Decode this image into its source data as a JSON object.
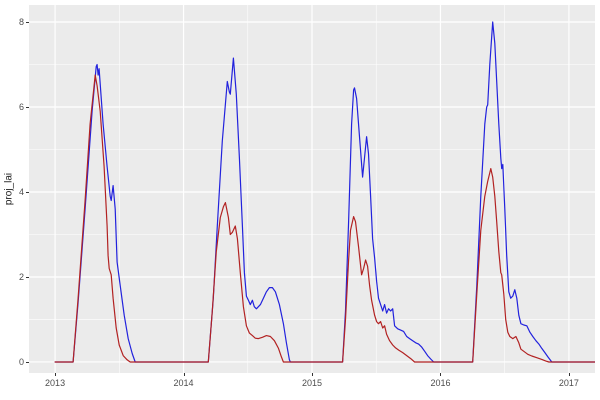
{
  "figure": {
    "background": "#ffffff",
    "panel_background": "#ebebeb",
    "grid_major_color": "#ffffff",
    "grid_minor_color": "#ffffff",
    "tick_mark_color": "#333333",
    "tick_label_color": "#4d4d4d",
    "axis_title_color": "#1a1a1a"
  },
  "chart_data": {
    "type": "line",
    "title": "",
    "xlabel": "",
    "ylabel": "proj_lai",
    "xlim": [
      2012.797,
      2017.203
    ],
    "ylim": [
      -0.26,
      8.4
    ],
    "x_ticks": [
      2013,
      2014,
      2015,
      2016,
      2017
    ],
    "x_tick_labels": [
      "2013",
      "2014",
      "2015",
      "2016",
      "2017"
    ],
    "y_ticks": [
      0,
      2,
      4,
      6,
      8
    ],
    "y_tick_labels": [
      "0",
      "2",
      "4",
      "6",
      "8"
    ],
    "x_minor_ticks": [
      2013.5,
      2014.5,
      2015.5,
      2016.5
    ],
    "y_minor_ticks": [
      1,
      3,
      5,
      7
    ],
    "grid": true,
    "legend": "none",
    "series": [
      {
        "name": "blue-series",
        "color": "#2222dd",
        "points": [
          [
            2013.0,
            0
          ],
          [
            2013.14,
            0
          ],
          [
            2013.179,
            1.4
          ],
          [
            2013.234,
            3.6
          ],
          [
            2013.288,
            5.9
          ],
          [
            2013.32,
            6.95
          ],
          [
            2013.327,
            7.0
          ],
          [
            2013.335,
            6.75
          ],
          [
            2013.343,
            6.9
          ],
          [
            2013.374,
            5.6
          ],
          [
            2013.405,
            4.6
          ],
          [
            2013.429,
            3.9
          ],
          [
            2013.437,
            3.8
          ],
          [
            2013.452,
            4.15
          ],
          [
            2013.468,
            3.6
          ],
          [
            2013.483,
            2.35
          ],
          [
            2013.507,
            1.8
          ],
          [
            2013.538,
            1.1
          ],
          [
            2013.569,
            0.55
          ],
          [
            2013.6,
            0.2
          ],
          [
            2013.624,
            0
          ],
          [
            2014.193,
            0
          ],
          [
            2014.232,
            1.5
          ],
          [
            2014.263,
            3.2
          ],
          [
            2014.302,
            5.2
          ],
          [
            2014.341,
            6.6
          ],
          [
            2014.357,
            6.35
          ],
          [
            2014.364,
            6.3
          ],
          [
            2014.388,
            7.15
          ],
          [
            2014.411,
            6.3
          ],
          [
            2014.435,
            4.8
          ],
          [
            2014.458,
            3.2
          ],
          [
            2014.474,
            2.1
          ],
          [
            2014.489,
            1.55
          ],
          [
            2014.505,
            1.45
          ],
          [
            2014.52,
            1.35
          ],
          [
            2014.536,
            1.45
          ],
          [
            2014.551,
            1.3
          ],
          [
            2014.567,
            1.25
          ],
          [
            2014.583,
            1.3
          ],
          [
            2014.598,
            1.35
          ],
          [
            2014.622,
            1.5
          ],
          [
            2014.645,
            1.65
          ],
          [
            2014.668,
            1.75
          ],
          [
            2014.692,
            1.75
          ],
          [
            2014.715,
            1.65
          ],
          [
            2014.746,
            1.35
          ],
          [
            2014.777,
            0.9
          ],
          [
            2014.801,
            0.45
          ],
          [
            2014.824,
            0.05
          ],
          [
            2014.832,
            0
          ],
          [
            2015.238,
            0
          ],
          [
            2015.261,
            1.2
          ],
          [
            2015.285,
            3.3
          ],
          [
            2015.308,
            5.6
          ],
          [
            2015.324,
            6.4
          ],
          [
            2015.331,
            6.45
          ],
          [
            2015.347,
            6.2
          ],
          [
            2015.37,
            5.3
          ],
          [
            2015.394,
            4.35
          ],
          [
            2015.409,
            4.8
          ],
          [
            2015.425,
            5.3
          ],
          [
            2015.44,
            4.9
          ],
          [
            2015.456,
            3.9
          ],
          [
            2015.472,
            2.9
          ],
          [
            2015.487,
            2.45
          ],
          [
            2015.503,
            1.9
          ],
          [
            2015.518,
            1.5
          ],
          [
            2015.534,
            1.35
          ],
          [
            2015.55,
            1.2
          ],
          [
            2015.565,
            1.35
          ],
          [
            2015.581,
            1.15
          ],
          [
            2015.596,
            1.25
          ],
          [
            2015.612,
            1.2
          ],
          [
            2015.628,
            1.25
          ],
          [
            2015.643,
            0.85
          ],
          [
            2015.667,
            0.78
          ],
          [
            2015.69,
            0.75
          ],
          [
            2015.713,
            0.72
          ],
          [
            2015.737,
            0.6
          ],
          [
            2015.76,
            0.55
          ],
          [
            2015.784,
            0.5
          ],
          [
            2015.807,
            0.45
          ],
          [
            2015.83,
            0.42
          ],
          [
            2015.854,
            0.35
          ],
          [
            2015.877,
            0.25
          ],
          [
            2015.9,
            0.15
          ],
          [
            2015.924,
            0.07
          ],
          [
            2015.947,
            0
          ],
          [
            2016.251,
            0
          ],
          [
            2016.283,
            1.8
          ],
          [
            2016.314,
            3.9
          ],
          [
            2016.345,
            5.6
          ],
          [
            2016.36,
            6.0
          ],
          [
            2016.368,
            6.05
          ],
          [
            2016.384,
            7.0
          ],
          [
            2016.407,
            8.0
          ],
          [
            2016.423,
            7.5
          ],
          [
            2016.438,
            6.6
          ],
          [
            2016.454,
            5.6
          ],
          [
            2016.47,
            4.8
          ],
          [
            2016.477,
            4.55
          ],
          [
            2016.485,
            4.65
          ],
          [
            2016.501,
            3.6
          ],
          [
            2016.516,
            2.5
          ],
          [
            2016.532,
            1.65
          ],
          [
            2016.547,
            1.5
          ],
          [
            2016.563,
            1.55
          ],
          [
            2016.579,
            1.7
          ],
          [
            2016.594,
            1.5
          ],
          [
            2016.61,
            1.1
          ],
          [
            2016.626,
            0.9
          ],
          [
            2016.649,
            0.87
          ],
          [
            2016.672,
            0.85
          ],
          [
            2016.696,
            0.7
          ],
          [
            2016.719,
            0.6
          ],
          [
            2016.743,
            0.5
          ],
          [
            2016.766,
            0.42
          ],
          [
            2016.789,
            0.32
          ],
          [
            2016.813,
            0.22
          ],
          [
            2016.836,
            0.12
          ],
          [
            2016.867,
            0
          ],
          [
            2017.202,
            0
          ]
        ]
      },
      {
        "name": "red-series",
        "color": "#b22222",
        "points": [
          [
            2013.0,
            0
          ],
          [
            2013.14,
            0
          ],
          [
            2013.179,
            1.5
          ],
          [
            2013.234,
            3.8
          ],
          [
            2013.273,
            5.6
          ],
          [
            2013.312,
            6.75
          ],
          [
            2013.327,
            6.5
          ],
          [
            2013.351,
            5.9
          ],
          [
            2013.382,
            4.6
          ],
          [
            2013.405,
            3.2
          ],
          [
            2013.413,
            2.5
          ],
          [
            2013.421,
            2.2
          ],
          [
            2013.437,
            2.05
          ],
          [
            2013.452,
            1.5
          ],
          [
            2013.476,
            0.8
          ],
          [
            2013.499,
            0.4
          ],
          [
            2013.53,
            0.15
          ],
          [
            2013.561,
            0.05
          ],
          [
            2013.585,
            0
          ],
          [
            2014.193,
            0
          ],
          [
            2014.224,
            1.2
          ],
          [
            2014.255,
            2.6
          ],
          [
            2014.286,
            3.4
          ],
          [
            2014.31,
            3.65
          ],
          [
            2014.326,
            3.75
          ],
          [
            2014.349,
            3.4
          ],
          [
            2014.364,
            3.0
          ],
          [
            2014.38,
            3.05
          ],
          [
            2014.403,
            3.2
          ],
          [
            2014.419,
            2.9
          ],
          [
            2014.442,
            2.1
          ],
          [
            2014.466,
            1.3
          ],
          [
            2014.489,
            0.85
          ],
          [
            2014.513,
            0.68
          ],
          [
            2014.536,
            0.62
          ],
          [
            2014.559,
            0.56
          ],
          [
            2014.583,
            0.55
          ],
          [
            2014.614,
            0.58
          ],
          [
            2014.645,
            0.62
          ],
          [
            2014.676,
            0.6
          ],
          [
            2014.707,
            0.5
          ],
          [
            2014.739,
            0.32
          ],
          [
            2014.762,
            0.12
          ],
          [
            2014.777,
            0
          ],
          [
            2015.238,
            0
          ],
          [
            2015.261,
            1.0
          ],
          [
            2015.285,
            2.4
          ],
          [
            2015.3,
            3.1
          ],
          [
            2015.324,
            3.42
          ],
          [
            2015.339,
            3.3
          ],
          [
            2015.363,
            2.7
          ],
          [
            2015.386,
            2.05
          ],
          [
            2015.402,
            2.2
          ],
          [
            2015.417,
            2.4
          ],
          [
            2015.433,
            2.25
          ],
          [
            2015.448,
            1.8
          ],
          [
            2015.464,
            1.45
          ],
          [
            2015.487,
            1.1
          ],
          [
            2015.503,
            0.95
          ],
          [
            2015.518,
            0.9
          ],
          [
            2015.534,
            0.95
          ],
          [
            2015.55,
            0.8
          ],
          [
            2015.565,
            0.85
          ],
          [
            2015.581,
            0.65
          ],
          [
            2015.604,
            0.5
          ],
          [
            2015.628,
            0.4
          ],
          [
            2015.651,
            0.33
          ],
          [
            2015.675,
            0.28
          ],
          [
            2015.706,
            0.22
          ],
          [
            2015.737,
            0.15
          ],
          [
            2015.768,
            0.08
          ],
          [
            2015.799,
            0
          ],
          [
            2016.251,
            0
          ],
          [
            2016.283,
            1.6
          ],
          [
            2016.314,
            3.1
          ],
          [
            2016.345,
            3.9
          ],
          [
            2016.368,
            4.25
          ],
          [
            2016.392,
            4.55
          ],
          [
            2016.407,
            4.35
          ],
          [
            2016.423,
            3.9
          ],
          [
            2016.438,
            3.3
          ],
          [
            2016.454,
            2.6
          ],
          [
            2016.47,
            2.1
          ],
          [
            2016.477,
            2.05
          ],
          [
            2016.493,
            1.6
          ],
          [
            2016.508,
            1.0
          ],
          [
            2016.524,
            0.7
          ],
          [
            2016.54,
            0.6
          ],
          [
            2016.563,
            0.55
          ],
          [
            2016.587,
            0.6
          ],
          [
            2016.61,
            0.45
          ],
          [
            2016.626,
            0.3
          ],
          [
            2016.649,
            0.25
          ],
          [
            2016.68,
            0.18
          ],
          [
            2016.711,
            0.14
          ],
          [
            2016.75,
            0.1
          ],
          [
            2016.789,
            0.06
          ],
          [
            2016.821,
            0.02
          ],
          [
            2016.844,
            0
          ],
          [
            2017.202,
            0
          ]
        ]
      }
    ]
  }
}
